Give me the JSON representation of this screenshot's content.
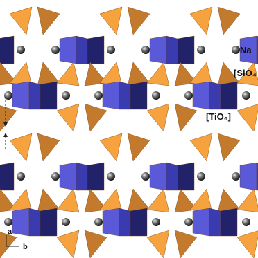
{
  "labels": {
    "na": "Na",
    "sio4": "[SiO₄",
    "tio6": "[TiO₆]"
  },
  "axes": {
    "a": "a",
    "b": "b"
  }
}
